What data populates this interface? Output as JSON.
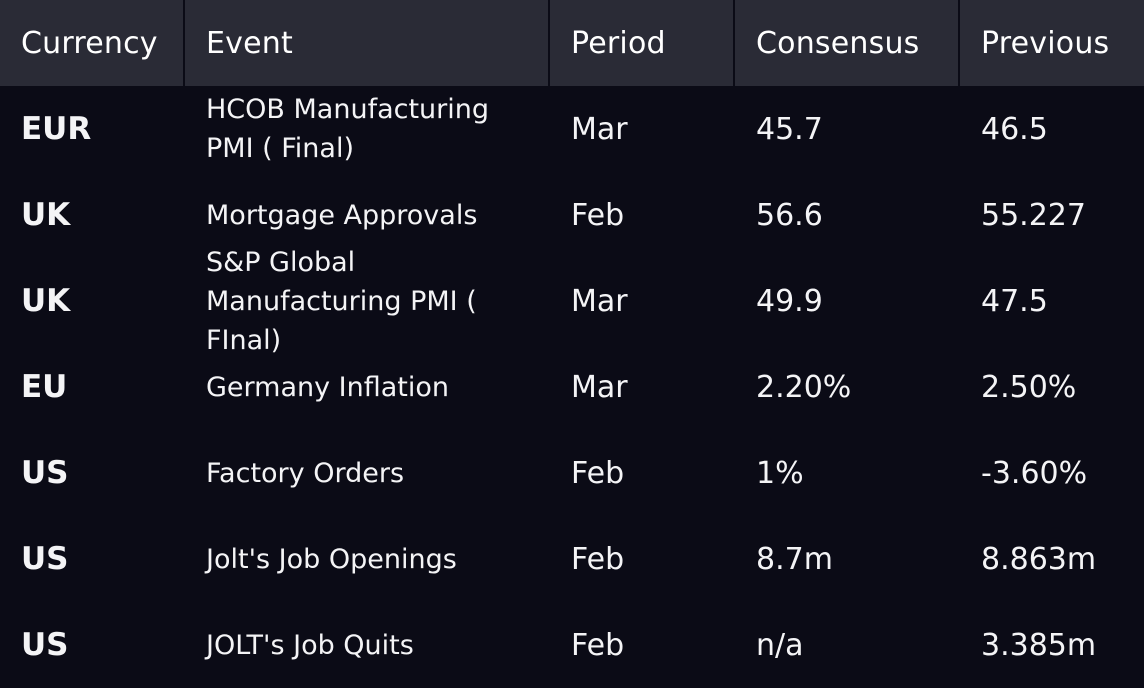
{
  "table": {
    "headers": {
      "currency": "Currency",
      "event": "Event",
      "period": "Period",
      "consensus": "Consensus",
      "previous": "Previous"
    },
    "rows": [
      {
        "currency": "EUR",
        "event": "HCOB Manufacturing PMI ( Final)",
        "period": "Mar",
        "consensus": "45.7",
        "previous": "46.5"
      },
      {
        "currency": "UK",
        "event": "Mortgage Approvals",
        "period": "Feb",
        "consensus": "56.6",
        "previous": "55.227"
      },
      {
        "currency": "UK",
        "event": "S&P Global Manufacturing PMI ( FInal)",
        "period": "Mar",
        "consensus": "49.9",
        "previous": "47.5"
      },
      {
        "currency": "EU",
        "event": "Germany Inflation",
        "period": "Mar",
        "consensus": "2.20%",
        "previous": "2.50%"
      },
      {
        "currency": "US",
        "event": "Factory Orders",
        "period": "Feb",
        "consensus": "1%",
        "previous": "-3.60%"
      },
      {
        "currency": "US",
        "event": "Jolt's Job Openings",
        "period": "Feb",
        "consensus": "8.7m",
        "previous": "8.863m"
      },
      {
        "currency": "US",
        "event": "JOLT's Job Quits",
        "period": "Feb",
        "consensus": "n/a",
        "previous": "3.385m"
      }
    ]
  }
}
